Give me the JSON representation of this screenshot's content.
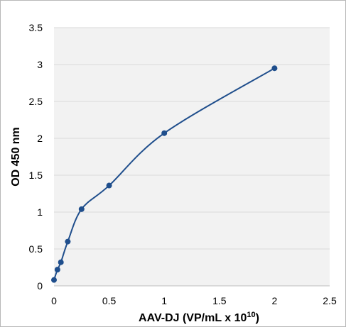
{
  "chart_data": {
    "type": "line",
    "title": "",
    "xlabel": "AAV-DJ (VP/mL x 10",
    "xlabel_superscript": "10",
    "xlabel_suffix": ")",
    "ylabel": "OD 450 nm",
    "xlim": [
      0,
      2.5
    ],
    "ylim": [
      0,
      3.5
    ],
    "x_ticks": [
      "0",
      "0.5",
      "1",
      "1.5",
      "2",
      "2.5"
    ],
    "y_ticks": [
      "0",
      "0.5",
      "1",
      "1.5",
      "2",
      "2.5",
      "3",
      "3.5"
    ],
    "grid": "horizontal",
    "plot_background": "#f2f2f2",
    "grid_color": "#d9d9d9",
    "series": [
      {
        "color": "#1f4e8c",
        "smooth": true,
        "x": [
          0,
          0.03125,
          0.0625,
          0.125,
          0.25,
          0.5,
          1,
          2
        ],
        "y": [
          0.08,
          0.22,
          0.32,
          0.6,
          1.04,
          1.36,
          2.07,
          2.95
        ]
      }
    ]
  }
}
